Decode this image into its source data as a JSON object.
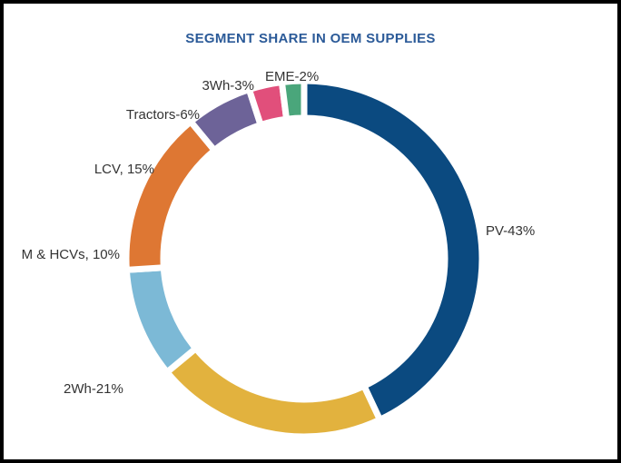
{
  "chart_data": {
    "type": "donut",
    "title": "SEGMENT SHARE IN OEM SUPPLIES",
    "values": [
      43,
      21,
      10,
      15,
      6,
      3,
      2
    ],
    "value_labels": [
      "PV-43%",
      "2Wh-21%",
      "M & HCVs, 10%",
      "LCV, 15%",
      "Tractors-6%",
      "3Wh-3%",
      "EME-2%"
    ],
    "colors": [
      "#0b4a80",
      "#e2b23e",
      "#7cb9d6",
      "#de7733",
      "#6d6398",
      "#e14f7b",
      "#4aa67b"
    ]
  }
}
